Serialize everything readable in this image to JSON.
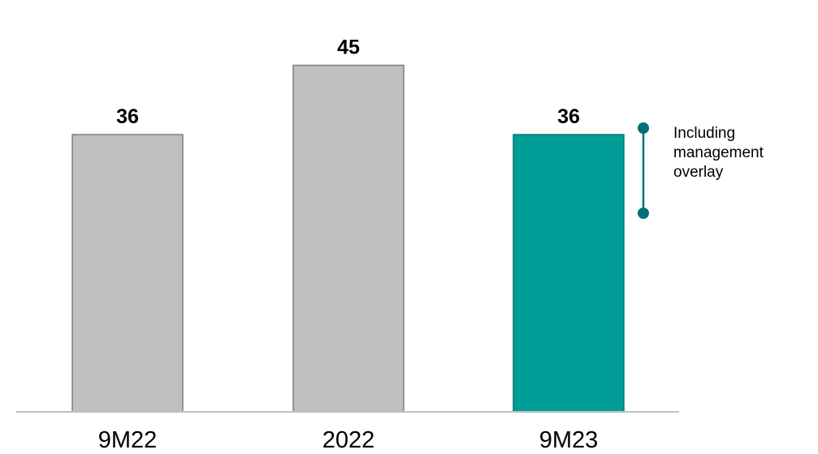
{
  "chart_data": {
    "type": "bar",
    "title": "",
    "xlabel": "",
    "ylabel": "",
    "categories": [
      "9M22",
      "2022",
      "9M23"
    ],
    "values": [
      36,
      45,
      36
    ],
    "value_labels": [
      "36",
      "45",
      "36"
    ],
    "ylim": [
      0,
      50
    ],
    "grid": false,
    "legend": "none",
    "colors": [
      "#bfbfbf",
      "#bfbfbf",
      "#009e96"
    ],
    "bar_stroke_colors": [
      "#7f7f7f",
      "#7f7f7f",
      "#007a74"
    ],
    "axis_color": "#bfbfbf",
    "annotation": {
      "bar_index": 2,
      "lines": [
        "Including",
        "management",
        "overlay"
      ],
      "color": "#00717a"
    }
  }
}
